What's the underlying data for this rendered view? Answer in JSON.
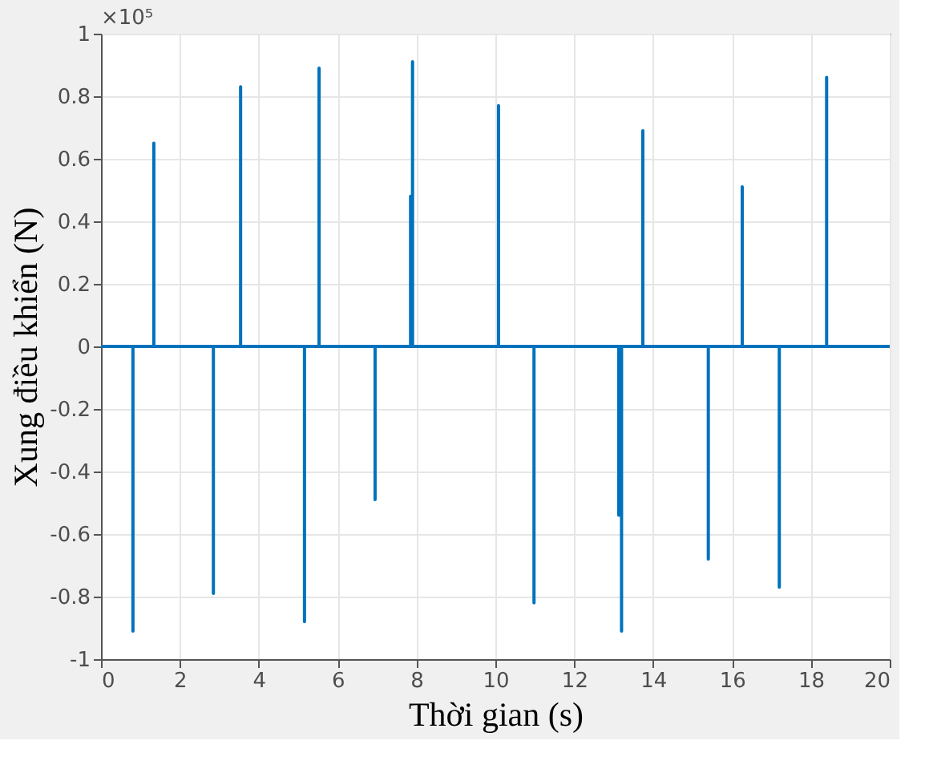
{
  "chart_data": {
    "type": "line",
    "xlabel": "Thời gian (s)",
    "ylabel": "Xung điều khiển (N)",
    "annotations": [
      "×10⁵"
    ],
    "x": [
      0,
      0.81,
      0.81,
      0.81,
      1.34,
      1.34,
      1.34,
      2.85,
      2.85,
      2.85,
      3.54,
      3.54,
      3.54,
      5.16,
      5.16,
      5.16,
      5.53,
      5.53,
      5.53,
      6.95,
      6.95,
      6.95,
      7.85,
      7.85,
      7.85,
      7.9,
      7.9,
      7.9,
      10.08,
      10.08,
      10.08,
      10.98,
      10.98,
      10.98,
      13.13,
      13.13,
      13.13,
      13.2,
      13.2,
      13.2,
      13.74,
      13.74,
      13.74,
      15.4,
      15.4,
      15.4,
      16.26,
      16.26,
      16.26,
      17.2,
      17.2,
      17.2,
      18.4,
      18.4,
      18.4,
      20
    ],
    "series": [
      {
        "color": "#0072bd",
        "values": [
          0,
          0,
          -0.91,
          0,
          0,
          0.65,
          0,
          0,
          -0.79,
          0,
          0,
          0.83,
          0,
          0,
          -0.88,
          0,
          0,
          0.89,
          0,
          0,
          -0.49,
          0,
          0,
          0.48,
          0,
          0,
          0.91,
          0,
          0,
          0.77,
          0,
          0,
          -0.82,
          0,
          0,
          -0.54,
          0,
          0,
          -0.91,
          0,
          0,
          0.69,
          0,
          0,
          -0.68,
          0,
          0,
          0.51,
          0,
          0,
          -0.77,
          0,
          0,
          0.86,
          0,
          0
        ]
      }
    ],
    "xlim": [
      0,
      20
    ],
    "xticks": [
      0,
      2,
      4,
      6,
      8,
      10,
      12,
      14,
      16,
      18,
      20
    ],
    "ylim": [
      -1,
      1
    ],
    "yticks": [
      -1,
      -0.8,
      -0.6,
      -0.4,
      -0.2,
      0,
      0.2,
      0.4,
      0.6,
      0.8,
      1
    ],
    "grid": true,
    "legend": false,
    "marker": "none",
    "line_style": "solid"
  }
}
